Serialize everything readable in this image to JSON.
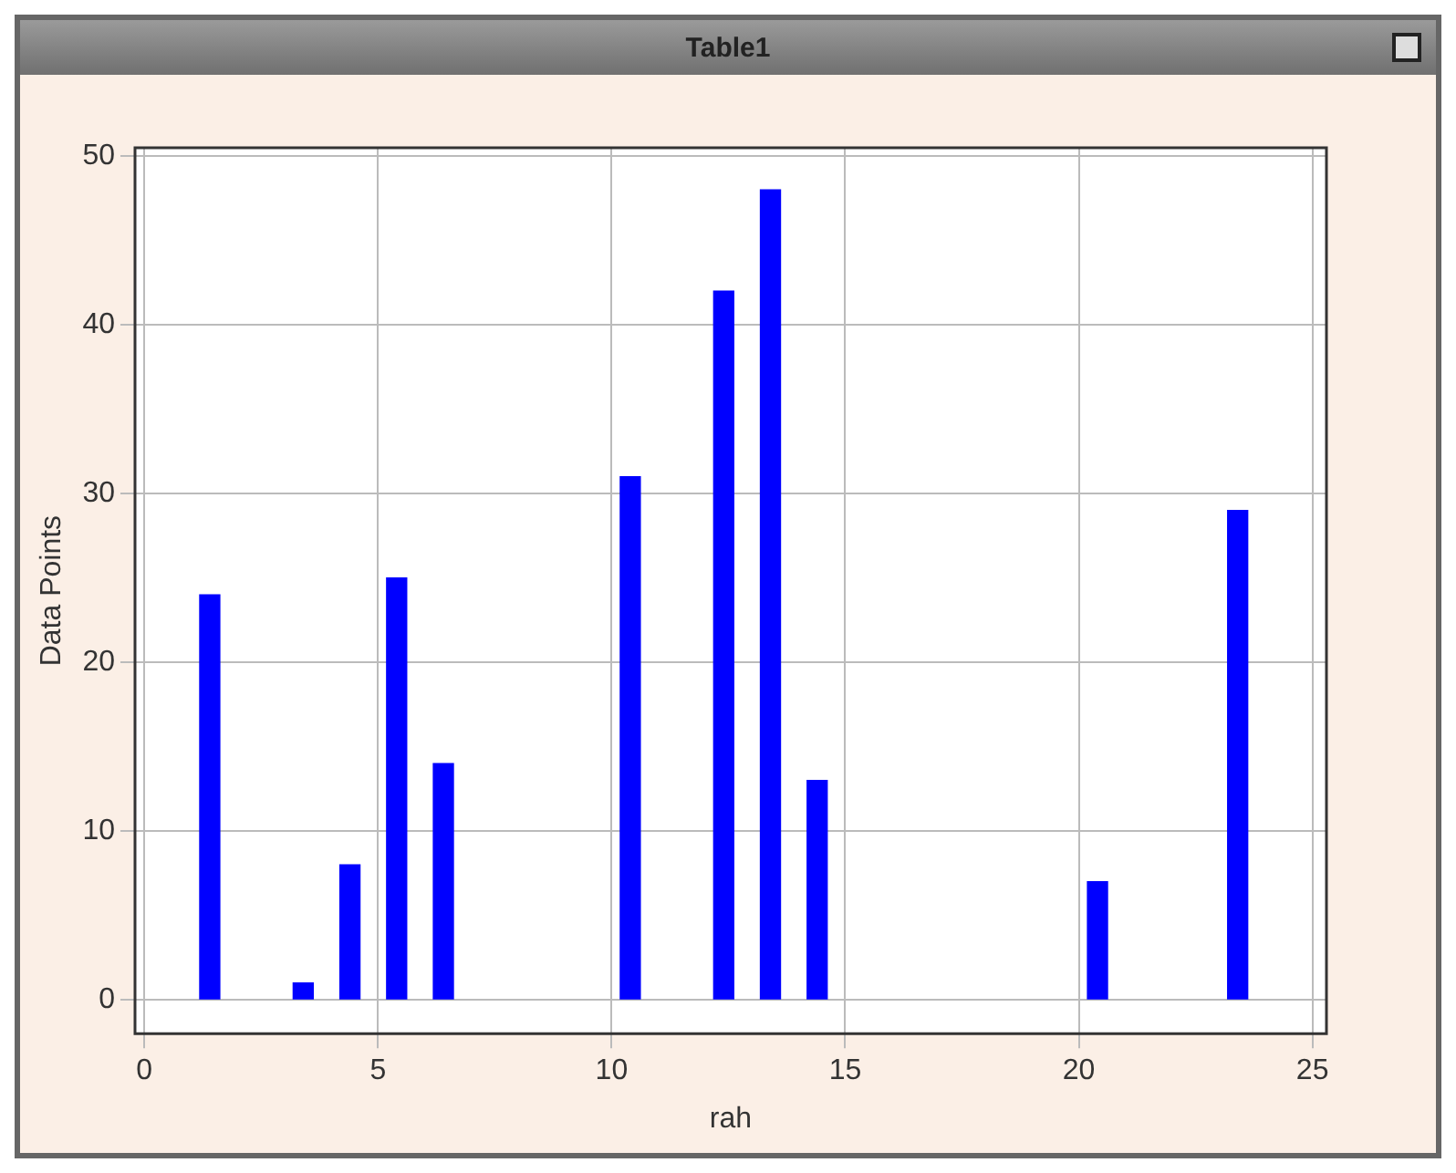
{
  "chart_data": {
    "type": "bar",
    "title": "Table1",
    "xlabel": "rah",
    "ylabel": "Data Points",
    "x": [
      1.4,
      3.4,
      4.4,
      5.4,
      6.4,
      10.4,
      12.4,
      13.4,
      14.4,
      20.4,
      23.4
    ],
    "values": [
      24,
      1,
      8,
      25,
      14,
      31,
      42,
      48,
      13,
      7,
      29
    ],
    "color": "#0000ff",
    "xlim": [
      -0.2,
      25.3
    ],
    "xticks": [
      0,
      5,
      10,
      15,
      20,
      25
    ],
    "ylim": [
      -2,
      50.5
    ],
    "yticks": [
      0,
      10,
      20,
      30,
      40,
      50
    ],
    "grid": true
  }
}
